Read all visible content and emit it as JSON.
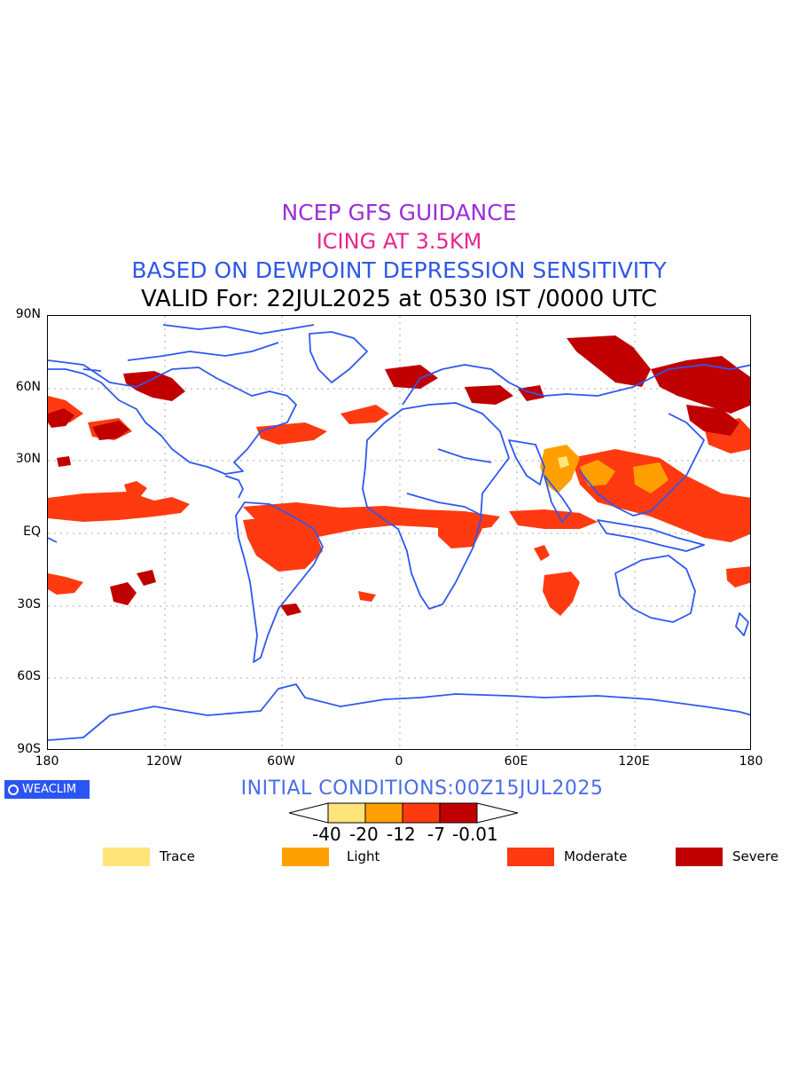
{
  "titles": {
    "line1": "NCEP GFS GUIDANCE",
    "line2": "ICING AT 3.5KM",
    "line3": "BASED ON DEWPOINT DEPRESSION SENSITIVITY",
    "line4": "VALID For: 22JUL2025 at 0530 IST /0000 UTC"
  },
  "colors": {
    "title1": "#9b2fd6",
    "title2": "#e8268d",
    "title3": "#2f57e6",
    "title4": "#000000",
    "coast": "#2f57f0",
    "grid": "#aaaaaa",
    "trace": "#ffe47a",
    "light": "#ffa000",
    "moderate": "#ff3a10",
    "severe": "#c00000",
    "init": "#4a6de8"
  },
  "axes": {
    "lat_labels": [
      "90N",
      "60N",
      "30N",
      "EQ",
      "30S",
      "60S",
      "90S"
    ],
    "lon_labels": [
      "180",
      "120W",
      "60W",
      "0",
      "60E",
      "120E",
      "180"
    ]
  },
  "branding": {
    "label": "WEACLIM"
  },
  "initial_conditions": "INITIAL CONDITIONS:00Z15JUL2025",
  "colorbar": {
    "ticks": [
      "-40",
      "-20",
      "-12",
      "-7",
      "-0.01"
    ]
  },
  "legend": [
    {
      "label": "Trace",
      "color": "#ffe47a"
    },
    {
      "label": "Light",
      "color": "#ffa000"
    },
    {
      "label": "Moderate",
      "color": "#ff3a10"
    },
    {
      "label": "Severe",
      "color": "#c00000"
    }
  ]
}
